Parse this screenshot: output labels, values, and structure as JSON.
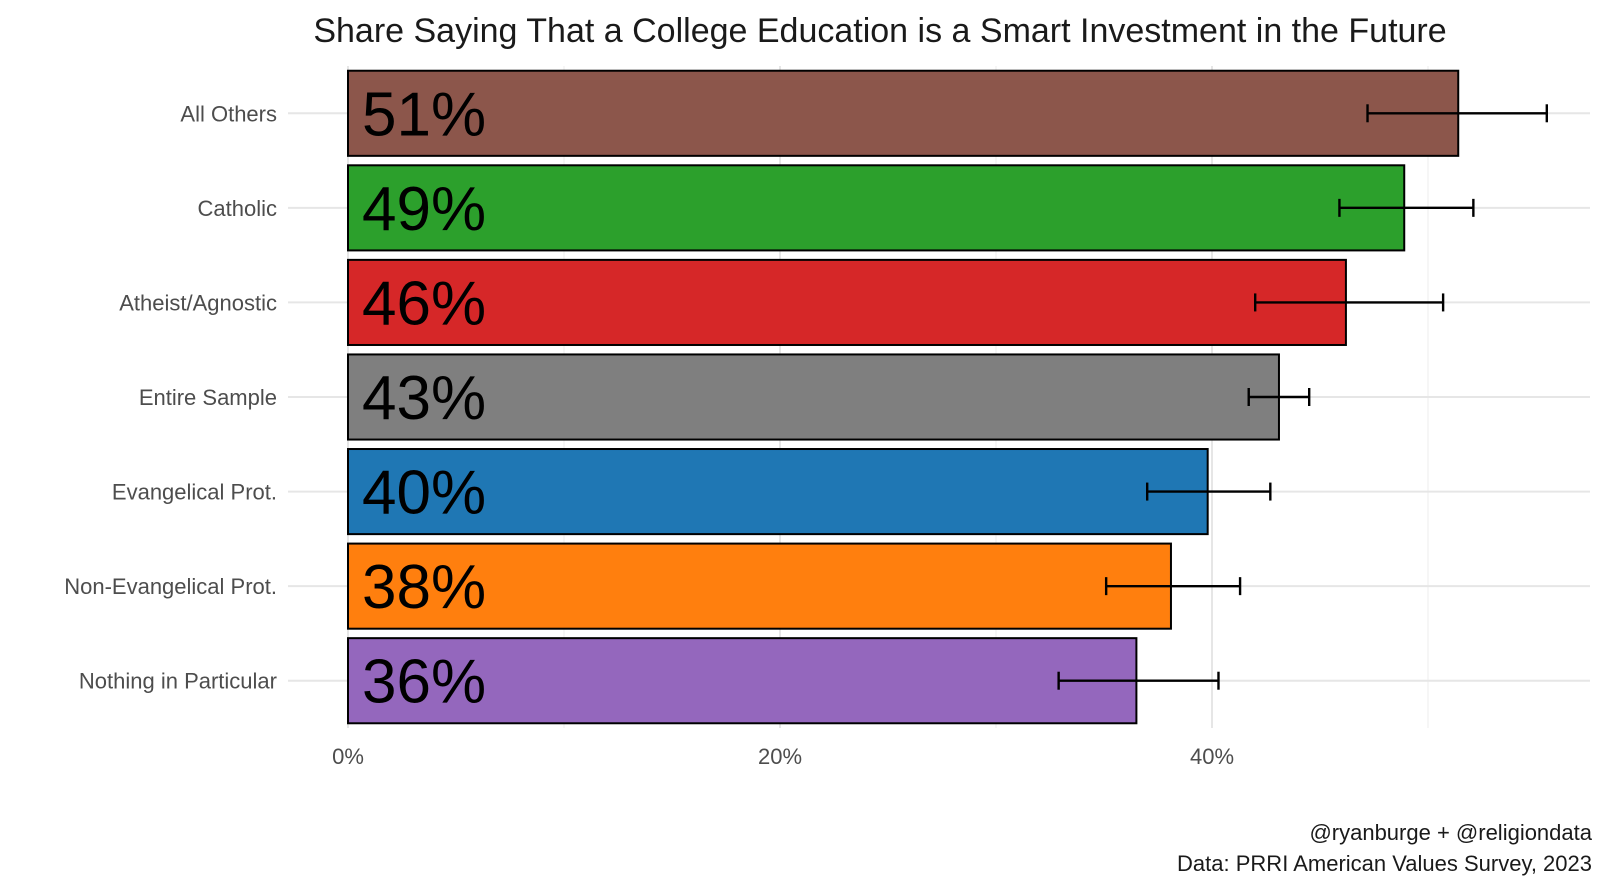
{
  "chart_data": {
    "type": "bar",
    "orientation": "horizontal",
    "title": "Share Saying That a College Education is a Smart Investment in the Future",
    "categories": [
      "All Others",
      "Catholic",
      "Atheist/Agnostic",
      "Entire Sample",
      "Evangelical Prot.",
      "Non-Evangelical Prot.",
      "Nothing in Particular"
    ],
    "values": [
      51.4,
      48.9,
      46.2,
      43.1,
      39.8,
      38.1,
      36.5
    ],
    "labels": [
      "51%",
      "49%",
      "46%",
      "43%",
      "40%",
      "38%",
      "36%"
    ],
    "error_low": [
      47.2,
      45.9,
      42.0,
      41.7,
      37.0,
      35.1,
      32.9
    ],
    "error_high": [
      55.5,
      52.1,
      50.7,
      44.5,
      42.7,
      41.3,
      40.3
    ],
    "colors": [
      "#8c564b",
      "#2ca02c",
      "#d62728",
      "#7f7f7f",
      "#1f77b4",
      "#ff7f0e",
      "#9467bd"
    ],
    "x_ticks": [
      0,
      20,
      40
    ],
    "x_tick_labels": [
      "0%",
      "20%",
      "40%"
    ],
    "xlim": [
      0,
      57.5
    ],
    "grid": true,
    "legend": "none",
    "caption_lines": [
      "@ryanburge + @religiondata",
      "Data: PRRI American Values Survey, 2023"
    ]
  }
}
